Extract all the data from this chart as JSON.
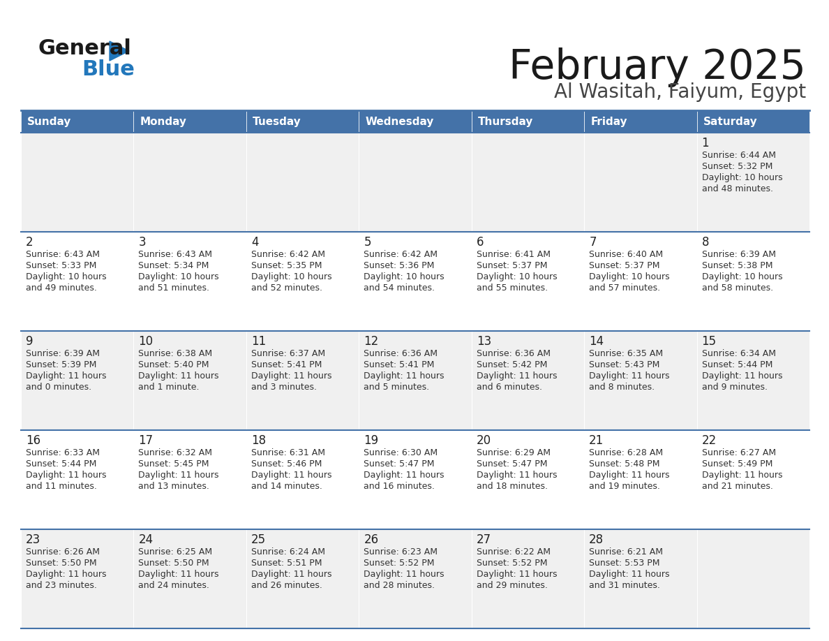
{
  "title": "February 2025",
  "subtitle": "Al Wasitah, Faiyum, Egypt",
  "days_of_week": [
    "Sunday",
    "Monday",
    "Tuesday",
    "Wednesday",
    "Thursday",
    "Friday",
    "Saturday"
  ],
  "header_bg": "#4472A8",
  "header_text": "#ffffff",
  "cell_bg_even": "#f0f0f0",
  "cell_bg_odd": "#ffffff",
  "separator_color": "#4472A8",
  "day_num_color": "#222222",
  "info_color": "#333333",
  "title_color": "#1a1a1a",
  "subtitle_color": "#444444",
  "logo_general_color": "#1a1a1a",
  "logo_blue_color": "#2277BB",
  "logo_triangle_color": "#2277BB",
  "calendar_data": [
    [
      null,
      null,
      null,
      null,
      null,
      null,
      {
        "day": 1,
        "sunrise": "6:44 AM",
        "sunset": "5:32 PM",
        "daylight_line1": "Daylight: 10 hours",
        "daylight_line2": "and 48 minutes."
      }
    ],
    [
      {
        "day": 2,
        "sunrise": "6:43 AM",
        "sunset": "5:33 PM",
        "daylight_line1": "Daylight: 10 hours",
        "daylight_line2": "and 49 minutes."
      },
      {
        "day": 3,
        "sunrise": "6:43 AM",
        "sunset": "5:34 PM",
        "daylight_line1": "Daylight: 10 hours",
        "daylight_line2": "and 51 minutes."
      },
      {
        "day": 4,
        "sunrise": "6:42 AM",
        "sunset": "5:35 PM",
        "daylight_line1": "Daylight: 10 hours",
        "daylight_line2": "and 52 minutes."
      },
      {
        "day": 5,
        "sunrise": "6:42 AM",
        "sunset": "5:36 PM",
        "daylight_line1": "Daylight: 10 hours",
        "daylight_line2": "and 54 minutes."
      },
      {
        "day": 6,
        "sunrise": "6:41 AM",
        "sunset": "5:37 PM",
        "daylight_line1": "Daylight: 10 hours",
        "daylight_line2": "and 55 minutes."
      },
      {
        "day": 7,
        "sunrise": "6:40 AM",
        "sunset": "5:37 PM",
        "daylight_line1": "Daylight: 10 hours",
        "daylight_line2": "and 57 minutes."
      },
      {
        "day": 8,
        "sunrise": "6:39 AM",
        "sunset": "5:38 PM",
        "daylight_line1": "Daylight: 10 hours",
        "daylight_line2": "and 58 minutes."
      }
    ],
    [
      {
        "day": 9,
        "sunrise": "6:39 AM",
        "sunset": "5:39 PM",
        "daylight_line1": "Daylight: 11 hours",
        "daylight_line2": "and 0 minutes."
      },
      {
        "day": 10,
        "sunrise": "6:38 AM",
        "sunset": "5:40 PM",
        "daylight_line1": "Daylight: 11 hours",
        "daylight_line2": "and 1 minute."
      },
      {
        "day": 11,
        "sunrise": "6:37 AM",
        "sunset": "5:41 PM",
        "daylight_line1": "Daylight: 11 hours",
        "daylight_line2": "and 3 minutes."
      },
      {
        "day": 12,
        "sunrise": "6:36 AM",
        "sunset": "5:41 PM",
        "daylight_line1": "Daylight: 11 hours",
        "daylight_line2": "and 5 minutes."
      },
      {
        "day": 13,
        "sunrise": "6:36 AM",
        "sunset": "5:42 PM",
        "daylight_line1": "Daylight: 11 hours",
        "daylight_line2": "and 6 minutes."
      },
      {
        "day": 14,
        "sunrise": "6:35 AM",
        "sunset": "5:43 PM",
        "daylight_line1": "Daylight: 11 hours",
        "daylight_line2": "and 8 minutes."
      },
      {
        "day": 15,
        "sunrise": "6:34 AM",
        "sunset": "5:44 PM",
        "daylight_line1": "Daylight: 11 hours",
        "daylight_line2": "and 9 minutes."
      }
    ],
    [
      {
        "day": 16,
        "sunrise": "6:33 AM",
        "sunset": "5:44 PM",
        "daylight_line1": "Daylight: 11 hours",
        "daylight_line2": "and 11 minutes."
      },
      {
        "day": 17,
        "sunrise": "6:32 AM",
        "sunset": "5:45 PM",
        "daylight_line1": "Daylight: 11 hours",
        "daylight_line2": "and 13 minutes."
      },
      {
        "day": 18,
        "sunrise": "6:31 AM",
        "sunset": "5:46 PM",
        "daylight_line1": "Daylight: 11 hours",
        "daylight_line2": "and 14 minutes."
      },
      {
        "day": 19,
        "sunrise": "6:30 AM",
        "sunset": "5:47 PM",
        "daylight_line1": "Daylight: 11 hours",
        "daylight_line2": "and 16 minutes."
      },
      {
        "day": 20,
        "sunrise": "6:29 AM",
        "sunset": "5:47 PM",
        "daylight_line1": "Daylight: 11 hours",
        "daylight_line2": "and 18 minutes."
      },
      {
        "day": 21,
        "sunrise": "6:28 AM",
        "sunset": "5:48 PM",
        "daylight_line1": "Daylight: 11 hours",
        "daylight_line2": "and 19 minutes."
      },
      {
        "day": 22,
        "sunrise": "6:27 AM",
        "sunset": "5:49 PM",
        "daylight_line1": "Daylight: 11 hours",
        "daylight_line2": "and 21 minutes."
      }
    ],
    [
      {
        "day": 23,
        "sunrise": "6:26 AM",
        "sunset": "5:50 PM",
        "daylight_line1": "Daylight: 11 hours",
        "daylight_line2": "and 23 minutes."
      },
      {
        "day": 24,
        "sunrise": "6:25 AM",
        "sunset": "5:50 PM",
        "daylight_line1": "Daylight: 11 hours",
        "daylight_line2": "and 24 minutes."
      },
      {
        "day": 25,
        "sunrise": "6:24 AM",
        "sunset": "5:51 PM",
        "daylight_line1": "Daylight: 11 hours",
        "daylight_line2": "and 26 minutes."
      },
      {
        "day": 26,
        "sunrise": "6:23 AM",
        "sunset": "5:52 PM",
        "daylight_line1": "Daylight: 11 hours",
        "daylight_line2": "and 28 minutes."
      },
      {
        "day": 27,
        "sunrise": "6:22 AM",
        "sunset": "5:52 PM",
        "daylight_line1": "Daylight: 11 hours",
        "daylight_line2": "and 29 minutes."
      },
      {
        "day": 28,
        "sunrise": "6:21 AM",
        "sunset": "5:53 PM",
        "daylight_line1": "Daylight: 11 hours",
        "daylight_line2": "and 31 minutes."
      },
      null
    ]
  ]
}
